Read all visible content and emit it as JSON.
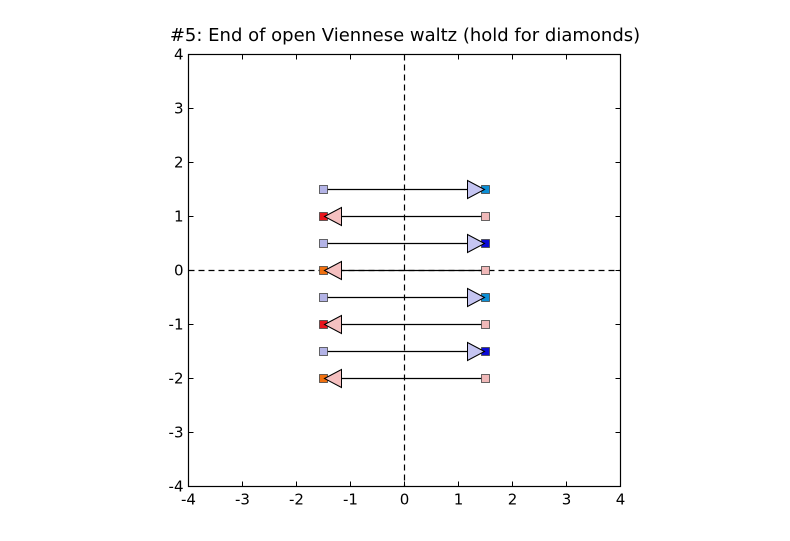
{
  "chart_data": {
    "type": "scatter",
    "title": "#5: End of open Viennese waltz (hold for diamonds)",
    "xlabel": "",
    "ylabel": "",
    "xlim": [
      -4,
      4
    ],
    "ylim": [
      -4,
      4
    ],
    "xticks": [
      "-4",
      "-3",
      "-2",
      "-1",
      "0",
      "1",
      "2",
      "3",
      "4"
    ],
    "yticks": [
      "-4",
      "-3",
      "-2",
      "-1",
      "0",
      "1",
      "2",
      "3",
      "4"
    ],
    "xtick_values": [
      -4,
      -3,
      -2,
      -1,
      0,
      1,
      2,
      3,
      4
    ],
    "ytick_values": [
      -4,
      -3,
      -2,
      -1,
      0,
      1,
      2,
      3,
      4
    ],
    "grid": false,
    "reference_lines": [
      {
        "orientation": "vertical",
        "value": 0,
        "style": "dashed"
      },
      {
        "orientation": "horizontal",
        "value": 0,
        "style": "dashed"
      }
    ],
    "dancers": [
      {
        "y": 1.5,
        "left_x": -1.5,
        "right_x": 1.5,
        "facing": "right",
        "left_color": "#b3b3e6",
        "right_color": "#0c8fd6",
        "arrow_color": "#c5c5f2"
      },
      {
        "y": 1.0,
        "left_x": -1.5,
        "right_x": 1.5,
        "facing": "left",
        "left_color": "#e8141c",
        "right_color": "#f0b8b8",
        "arrow_color": "#f5c0c0"
      },
      {
        "y": 0.5,
        "left_x": -1.5,
        "right_x": 1.5,
        "facing": "right",
        "left_color": "#b3b3e6",
        "right_color": "#0a0ad6",
        "arrow_color": "#c5c5f2"
      },
      {
        "y": 0.0,
        "left_x": -1.5,
        "right_x": 1.5,
        "facing": "left",
        "left_color": "#f07010",
        "right_color": "#f0b8b8",
        "arrow_color": "#f5c0c0"
      },
      {
        "y": -0.5,
        "left_x": -1.5,
        "right_x": 1.5,
        "facing": "right",
        "left_color": "#b3b3e6",
        "right_color": "#0c8fd6",
        "arrow_color": "#c5c5f2"
      },
      {
        "y": -1.0,
        "left_x": -1.5,
        "right_x": 1.5,
        "facing": "left",
        "left_color": "#e8141c",
        "right_color": "#f0b8b8",
        "arrow_color": "#f5c0c0"
      },
      {
        "y": -1.5,
        "left_x": -1.5,
        "right_x": 1.5,
        "facing": "right",
        "left_color": "#b3b3e6",
        "right_color": "#0a0ad6",
        "arrow_color": "#c5c5f2"
      },
      {
        "y": -2.0,
        "left_x": -1.5,
        "right_x": 1.5,
        "facing": "left",
        "left_color": "#f07010",
        "right_color": "#f0b8b8",
        "arrow_color": "#f5c0c0"
      }
    ]
  }
}
